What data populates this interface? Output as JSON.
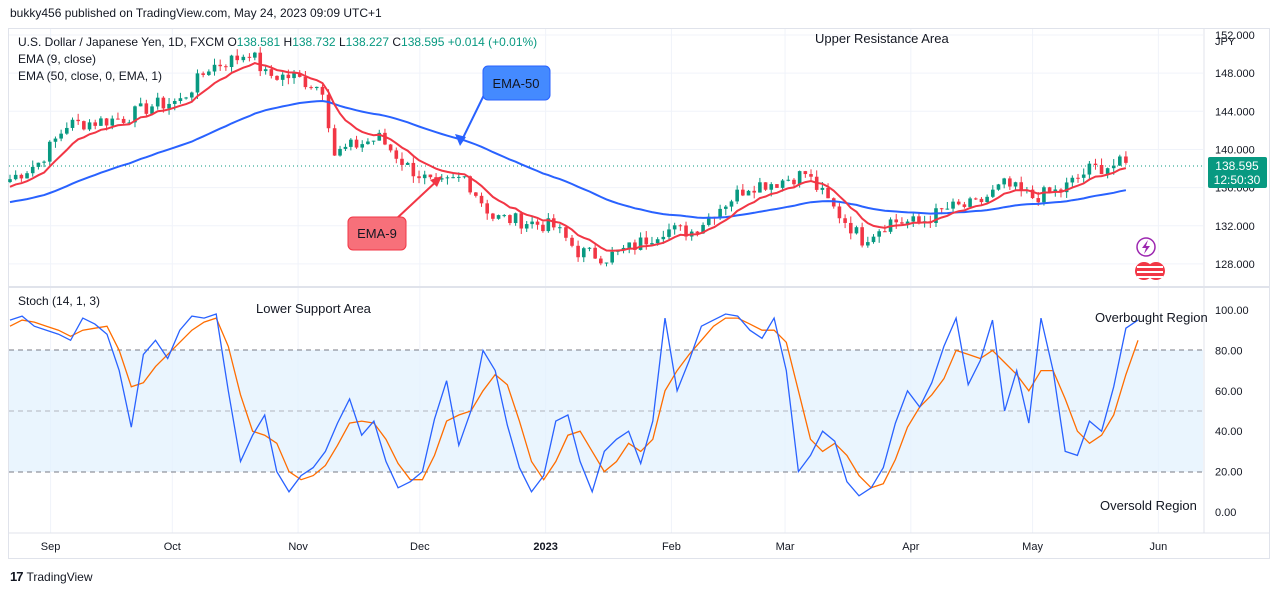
{
  "header": {
    "publisher_line": "bukky456 published on TradingView.com, May 24, 2023 09:09 UTC+1"
  },
  "legend": {
    "symbol_name": "U.S. Dollar / Japanese Yen, 1D, FXCM",
    "ohlc_prefix_o": "O",
    "open": "138.581",
    "ohlc_prefix_h": "H",
    "high": "138.732",
    "ohlc_prefix_l": "L",
    "low": "138.227",
    "ohlc_prefix_c": "C",
    "close": "138.595",
    "change": "+0.014 (+0.01%)",
    "ema9": "EMA (9, close)",
    "ema50": "EMA (50, close, 0, EMA, 1)",
    "stoch": "Stoch (14, 1, 3)"
  },
  "currency": "JPY",
  "price_badge": {
    "price": "138.595",
    "countdown": "12:50:30"
  },
  "annotations": {
    "upper_resistance": "Upper Resistance Area",
    "lower_support": "Lower Support Area",
    "overbought": "Overbought Region",
    "oversold": "Oversold Region",
    "ema50_callout": "EMA-50",
    "ema9_callout": "EMA-9"
  },
  "footer": {
    "brand": "TradingView"
  },
  "colors": {
    "bull": "#089981",
    "bear": "#f23645",
    "ema9": "#f23645",
    "ema50": "#2962ff",
    "stoch_k": "#2962ff",
    "stoch_d": "#ff6d00",
    "band": "#e3f2fd",
    "badge": "#089981"
  },
  "chart_data": [
    {
      "type": "candlestick",
      "title": "U.S. Dollar / Japanese Yen, 1D, FXCM",
      "y_axis_side": "right",
      "ylim": [
        126.0,
        152.0
      ],
      "y_ticks": [
        "152.000",
        "148.000",
        "144.000",
        "140.000",
        "136.000",
        "132.000",
        "128.000"
      ],
      "x_ticks": [
        "Sep",
        "Oct",
        "Nov",
        "Dec",
        "2023",
        "Feb",
        "Mar",
        "Apr",
        "May",
        "Jun"
      ],
      "last_price": 138.595,
      "close_series": [
        {
          "x": "2022-08-22",
          "close": 136.9
        },
        {
          "x": "2022-08-29",
          "close": 138.6
        },
        {
          "x": "2022-09-05",
          "close": 142.6
        },
        {
          "x": "2022-09-12",
          "close": 142.9
        },
        {
          "x": "2022-09-19",
          "close": 143.3
        },
        {
          "x": "2022-09-26",
          "close": 144.6
        },
        {
          "x": "2022-10-03",
          "close": 145.1
        },
        {
          "x": "2022-10-10",
          "close": 148.6
        },
        {
          "x": "2022-10-17",
          "close": 149.6
        },
        {
          "x": "2022-10-20",
          "close": 150.3
        },
        {
          "x": "2022-10-24",
          "close": 147.8
        },
        {
          "x": "2022-10-31",
          "close": 147.6
        },
        {
          "x": "2022-11-07",
          "close": 146.4
        },
        {
          "x": "2022-11-10",
          "close": 139.5
        },
        {
          "x": "2022-11-14",
          "close": 140.3
        },
        {
          "x": "2022-11-21",
          "close": 141.2
        },
        {
          "x": "2022-11-28",
          "close": 138.2
        },
        {
          "x": "2022-12-05",
          "close": 136.1
        },
        {
          "x": "2022-12-12",
          "close": 137.1
        },
        {
          "x": "2022-12-19",
          "close": 132.9
        },
        {
          "x": "2022-12-26",
          "close": 132.5
        },
        {
          "x": "2023-01-03",
          "close": 131.9
        },
        {
          "x": "2023-01-09",
          "close": 129.3
        },
        {
          "x": "2023-01-16",
          "close": 128.7
        },
        {
          "x": "2023-01-23",
          "close": 129.9
        },
        {
          "x": "2023-01-30",
          "close": 131.6
        },
        {
          "x": "2023-02-06",
          "close": 131.4
        },
        {
          "x": "2023-02-13",
          "close": 134.0
        },
        {
          "x": "2023-02-20",
          "close": 136.2
        },
        {
          "x": "2023-02-27",
          "close": 136.6
        },
        {
          "x": "2023-03-06",
          "close": 137.5
        },
        {
          "x": "2023-03-13",
          "close": 133.8
        },
        {
          "x": "2023-03-20",
          "close": 130.6
        },
        {
          "x": "2023-03-27",
          "close": 132.5
        },
        {
          "x": "2023-04-03",
          "close": 132.3
        },
        {
          "x": "2023-04-10",
          "close": 133.8
        },
        {
          "x": "2023-04-17",
          "close": 134.2
        },
        {
          "x": "2023-04-24",
          "close": 136.3
        },
        {
          "x": "2023-05-01",
          "close": 135.0
        },
        {
          "x": "2023-05-08",
          "close": 135.7
        },
        {
          "x": "2023-05-15",
          "close": 137.9
        },
        {
          "x": "2023-05-24",
          "close": 138.595
        }
      ]
    },
    {
      "type": "line",
      "title": "Stoch (14, 1, 3)",
      "ylim": [
        0,
        100
      ],
      "y_ticks": [
        "100.00",
        "80.00",
        "60.00",
        "40.00",
        "20.00",
        "0.00"
      ],
      "levels": [
        80,
        50,
        20
      ],
      "series": [
        {
          "name": "%K",
          "values": [
            95,
            97,
            92,
            90,
            88,
            85,
            96,
            93,
            88,
            70,
            42,
            78,
            85,
            76,
            90,
            97,
            96,
            98,
            60,
            25,
            38,
            48,
            20,
            10,
            18,
            22,
            30,
            44,
            56,
            38,
            45,
            25,
            12,
            15,
            20,
            46,
            65,
            33,
            50,
            80,
            70,
            43,
            22,
            10,
            18,
            45,
            48,
            25,
            10,
            30,
            36,
            40,
            24,
            45,
            96,
            60,
            75,
            92,
            95,
            98,
            97,
            90,
            86,
            96,
            70,
            20,
            28,
            40,
            35,
            15,
            8,
            12,
            22,
            44,
            60,
            52,
            64,
            82,
            96,
            63,
            75,
            95,
            50,
            70,
            44,
            96,
            70,
            30,
            28,
            45,
            40,
            62,
            91,
            95
          ]
        },
        {
          "name": "%D",
          "values": [
            92,
            95,
            94,
            92,
            90,
            87,
            90,
            91,
            92,
            80,
            62,
            64,
            72,
            78,
            84,
            90,
            94,
            96,
            82,
            58,
            40,
            38,
            34,
            20,
            16,
            18,
            23,
            33,
            44,
            45,
            44,
            36,
            24,
            16,
            16,
            28,
            45,
            48,
            50,
            60,
            68,
            63,
            45,
            25,
            16,
            25,
            38,
            40,
            30,
            20,
            25,
            34,
            30,
            36,
            60,
            70,
            78,
            85,
            92,
            96,
            96,
            93,
            90,
            90,
            84,
            60,
            36,
            30,
            34,
            28,
            18,
            12,
            14,
            26,
            42,
            52,
            58,
            66,
            80,
            78,
            76,
            80,
            74,
            68,
            60,
            70,
            70,
            56,
            40,
            34,
            38,
            48,
            68,
            85
          ]
        }
      ]
    }
  ]
}
